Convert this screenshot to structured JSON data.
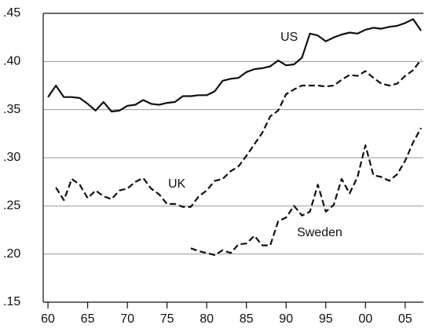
{
  "chart_data": {
    "type": "line",
    "x": [
      1960,
      1961,
      1962,
      1963,
      1964,
      1965,
      1966,
      1967,
      1968,
      1969,
      1970,
      1971,
      1972,
      1973,
      1974,
      1975,
      1976,
      1977,
      1978,
      1979,
      1980,
      1981,
      1982,
      1983,
      1984,
      1985,
      1986,
      1987,
      1988,
      1989,
      1990,
      1991,
      1992,
      1993,
      1994,
      1995,
      1996,
      1997,
      1998,
      1999,
      2000,
      2001,
      2002,
      2003,
      2004,
      2005,
      2006,
      2007
    ],
    "series": [
      {
        "name": "US",
        "color": "#111111",
        "line_style": "solid",
        "values": [
          0.363,
          0.375,
          0.363,
          0.363,
          0.362,
          0.356,
          0.349,
          0.358,
          0.348,
          0.349,
          0.354,
          0.355,
          0.36,
          0.356,
          0.355,
          0.357,
          0.358,
          0.364,
          0.364,
          0.365,
          0.365,
          0.369,
          0.38,
          0.382,
          0.383,
          0.389,
          0.392,
          0.393,
          0.395,
          0.401,
          0.396,
          0.397,
          0.404,
          0.429,
          0.427,
          0.421,
          0.425,
          0.428,
          0.43,
          0.429,
          0.433,
          0.435,
          0.434,
          0.436,
          0.437,
          0.44,
          0.444,
          0.432
        ]
      },
      {
        "name": "UK",
        "color": "#111111",
        "line_style": "dashed",
        "values": [
          null,
          0.269,
          0.256,
          0.278,
          0.272,
          0.258,
          0.266,
          0.26,
          0.257,
          0.266,
          0.268,
          0.275,
          0.279,
          0.268,
          0.262,
          0.252,
          0.252,
          0.249,
          0.249,
          0.26,
          0.266,
          0.276,
          0.278,
          0.286,
          0.291,
          0.302,
          0.314,
          0.326,
          0.343,
          0.349,
          0.366,
          0.371,
          0.375,
          0.375,
          0.375,
          0.374,
          0.375,
          0.381,
          0.386,
          0.385,
          0.39,
          0.383,
          0.377,
          0.375,
          0.377,
          0.385,
          0.391,
          0.402
        ]
      },
      {
        "name": "Sweden",
        "color": "#111111",
        "line_style": "dashed",
        "values": [
          null,
          null,
          null,
          null,
          null,
          null,
          null,
          null,
          null,
          null,
          null,
          null,
          null,
          null,
          null,
          null,
          null,
          null,
          0.206,
          0.203,
          0.201,
          0.199,
          0.204,
          0.201,
          0.21,
          0.211,
          0.219,
          0.209,
          0.209,
          0.234,
          0.238,
          0.25,
          0.24,
          0.244,
          0.272,
          0.244,
          0.251,
          0.278,
          0.263,
          0.28,
          0.313,
          0.282,
          0.28,
          0.276,
          0.283,
          0.297,
          0.316,
          0.331
        ]
      }
    ],
    "xlim": [
      1959.4,
      2007.3
    ],
    "xticks": [
      {
        "value": 1960,
        "label": "60"
      },
      {
        "value": 1965,
        "label": "65"
      },
      {
        "value": 1970,
        "label": "70"
      },
      {
        "value": 1975,
        "label": "75"
      },
      {
        "value": 1980,
        "label": "80"
      },
      {
        "value": 1985,
        "label": "85"
      },
      {
        "value": 1990,
        "label": "90"
      },
      {
        "value": 1995,
        "label": "95"
      },
      {
        "value": 2000,
        "label": "00"
      },
      {
        "value": 2005,
        "label": "05"
      }
    ],
    "ylim": [
      0.15,
      0.45
    ],
    "yticks": [
      {
        "value": 0.15,
        "label": ".15"
      },
      {
        "value": 0.2,
        "label": ".20"
      },
      {
        "value": 0.25,
        "label": ".25"
      },
      {
        "value": 0.3,
        "label": ".30"
      },
      {
        "value": 0.35,
        "label": ".35"
      },
      {
        "value": 0.4,
        "label": ".40"
      },
      {
        "value": 0.45,
        "label": ".45"
      }
    ],
    "grid": true
  }
}
